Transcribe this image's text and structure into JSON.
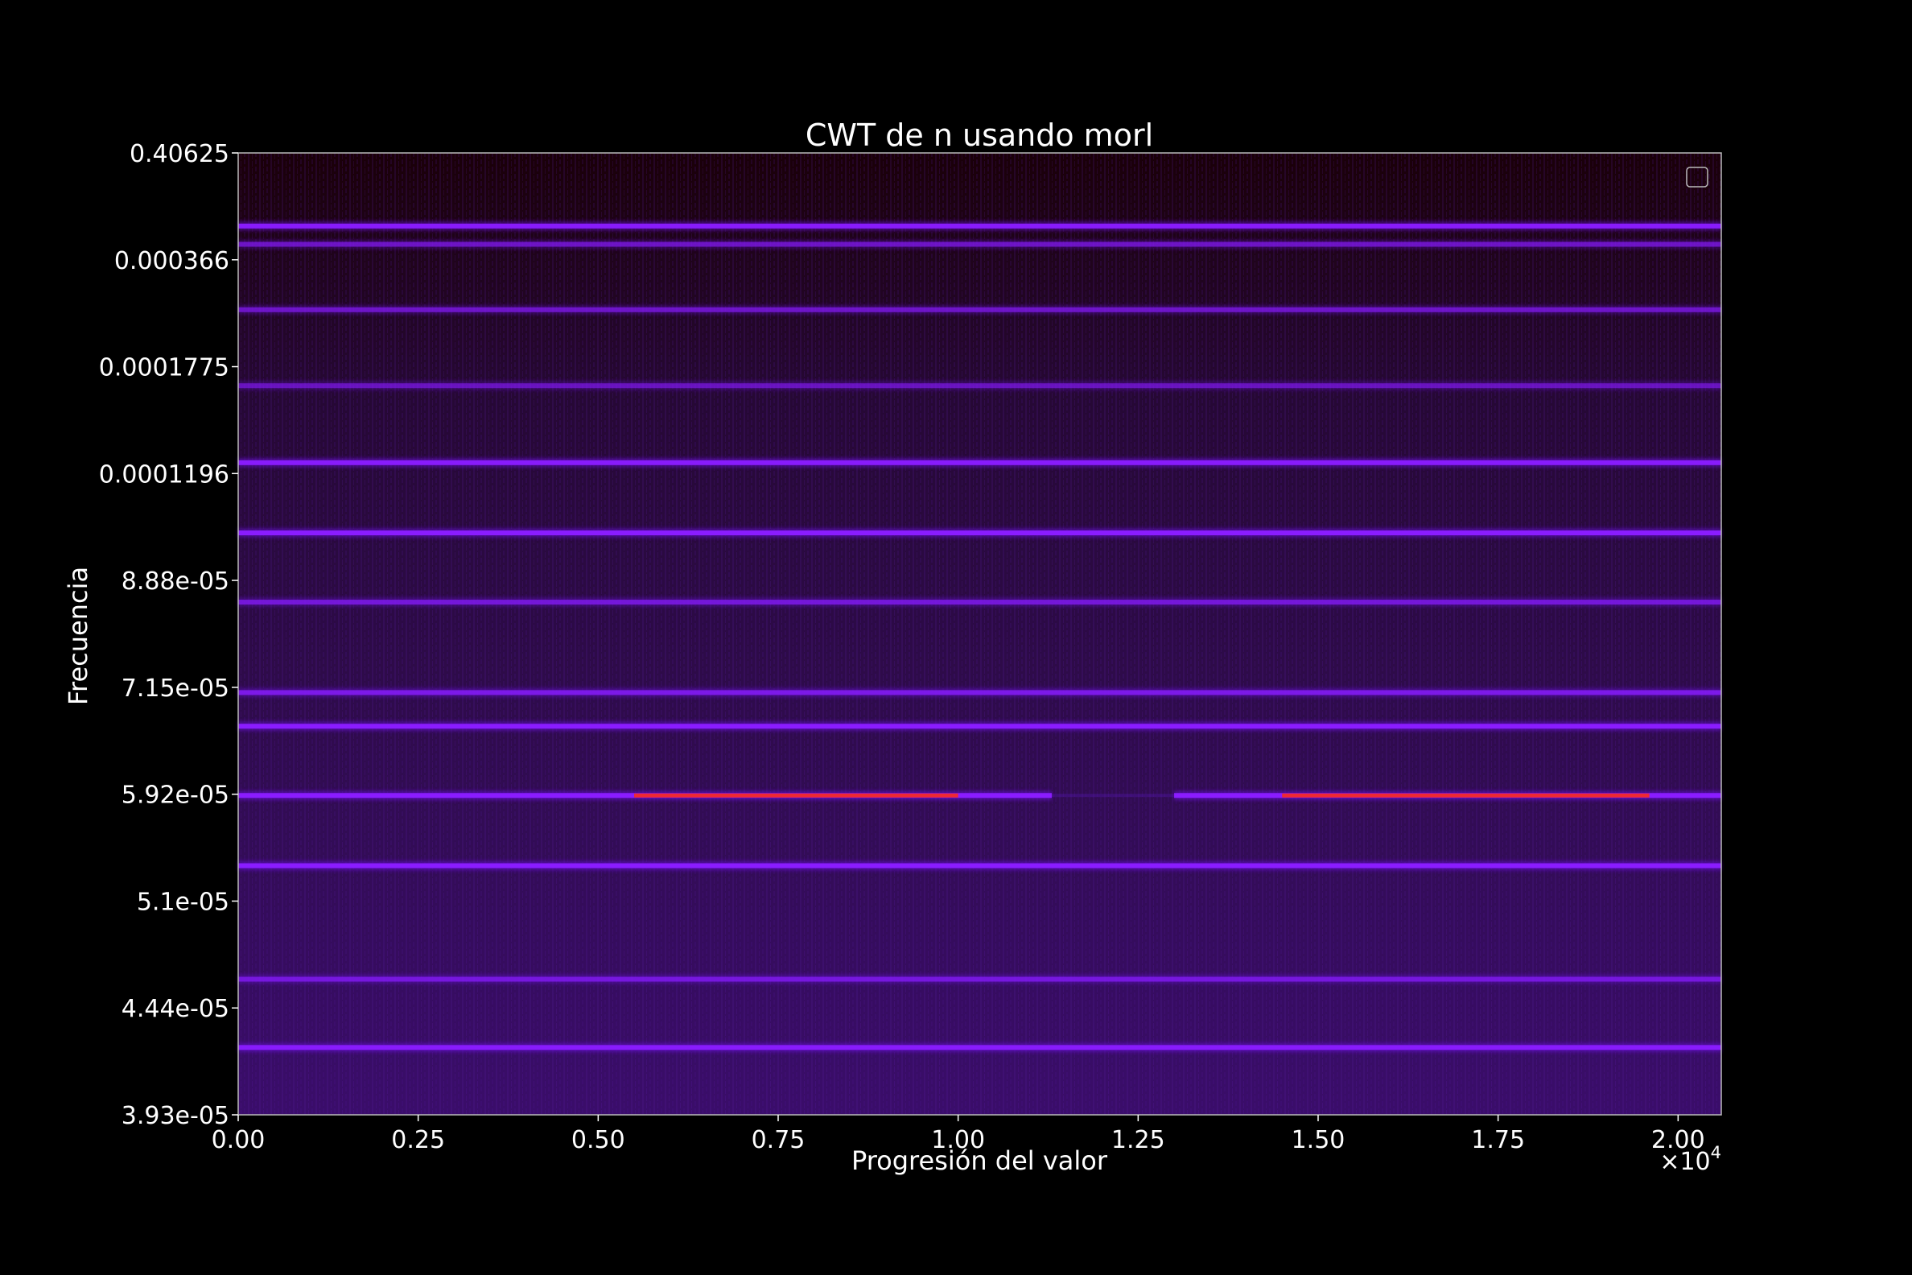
{
  "chart_data": {
    "type": "heatmap",
    "title": "CWT de n usando morl",
    "xlabel": "Progresión del valor",
    "ylabel": "Frecuencia",
    "x_multiplier": "×10",
    "x_multiplier_exp": "4",
    "xlim": [
      0,
      20600
    ],
    "x_ticks": [
      0,
      2500,
      5000,
      7500,
      10000,
      12500,
      15000,
      17500,
      20000
    ],
    "x_tick_labels": [
      "0.00",
      "0.25",
      "0.50",
      "0.75",
      "1.00",
      "1.25",
      "1.50",
      "1.75",
      "2.00"
    ],
    "y_tick_labels": [
      "0.40625",
      "0.000366",
      "0.0001775",
      "0.0001196",
      "8.88e-05",
      "7.15e-05",
      "5.92e-05",
      "5.1e-05",
      "4.44e-05",
      "3.93e-05"
    ],
    "y_tick_fractions": [
      1.0,
      0.8889,
      0.7778,
      0.6667,
      0.5556,
      0.4444,
      0.3333,
      0.2222,
      0.1111,
      0.0
    ],
    "colormap": [
      "#1a0006",
      "#2e0a3a",
      "#3f0f66",
      "#7a14ff",
      "#c01a8a",
      "#ff2000"
    ],
    "background_color": "#000000",
    "legend": "top-right, empty",
    "bands": [
      {
        "y": 0.924,
        "intensity": 0.95
      },
      {
        "y": 0.905,
        "intensity": 0.45
      },
      {
        "y": 0.837,
        "intensity": 0.45
      },
      {
        "y": 0.758,
        "intensity": 0.35
      },
      {
        "y": 0.678,
        "intensity": 0.95
      },
      {
        "y": 0.605,
        "intensity": 1.0
      },
      {
        "y": 0.533,
        "intensity": 0.55
      },
      {
        "y": 0.439,
        "intensity": 0.7
      },
      {
        "y": 0.404,
        "intensity": 1.0
      },
      {
        "y": 0.332,
        "intensity": 1.0,
        "hot_ranges": [
          [
            5500,
            10000
          ],
          [
            14500,
            19600
          ]
        ],
        "gap_range": [
          11300,
          13000
        ]
      },
      {
        "y": 0.259,
        "intensity": 1.0
      },
      {
        "y": 0.141,
        "intensity": 0.55
      },
      {
        "y": 0.07,
        "intensity": 0.95
      }
    ]
  }
}
